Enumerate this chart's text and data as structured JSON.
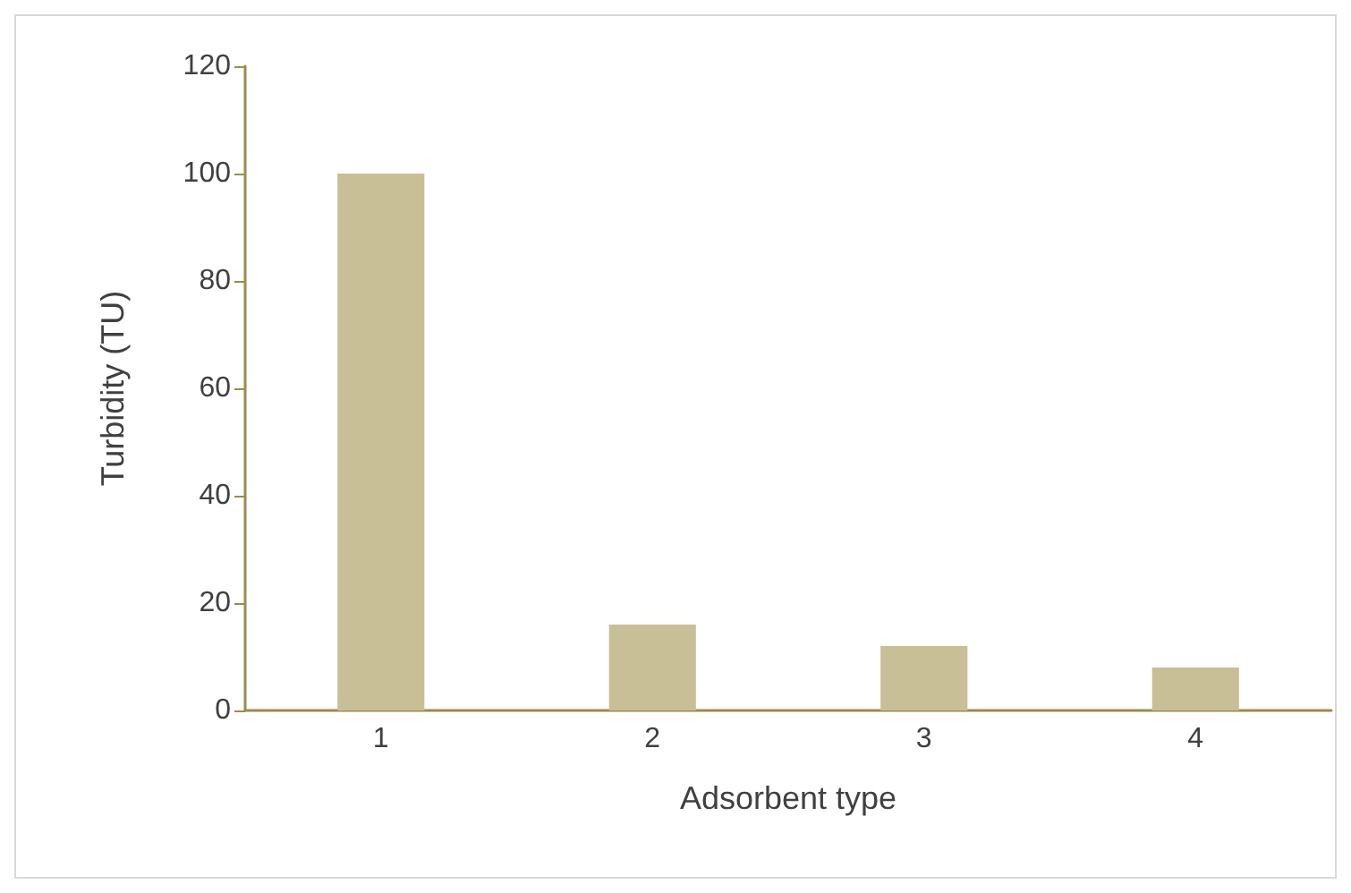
{
  "chart_data": {
    "type": "bar",
    "xlabel": "Adsorbent type",
    "ylabel": "Turbidity (TU)",
    "categories": [
      "1",
      "2",
      "3",
      "4"
    ],
    "values": [
      100,
      16,
      12,
      8
    ],
    "color": "#c8bf96",
    "ylim": [
      0,
      120
    ],
    "yticks": [
      0,
      20,
      40,
      60,
      80,
      100,
      120
    ],
    "grid": false
  }
}
